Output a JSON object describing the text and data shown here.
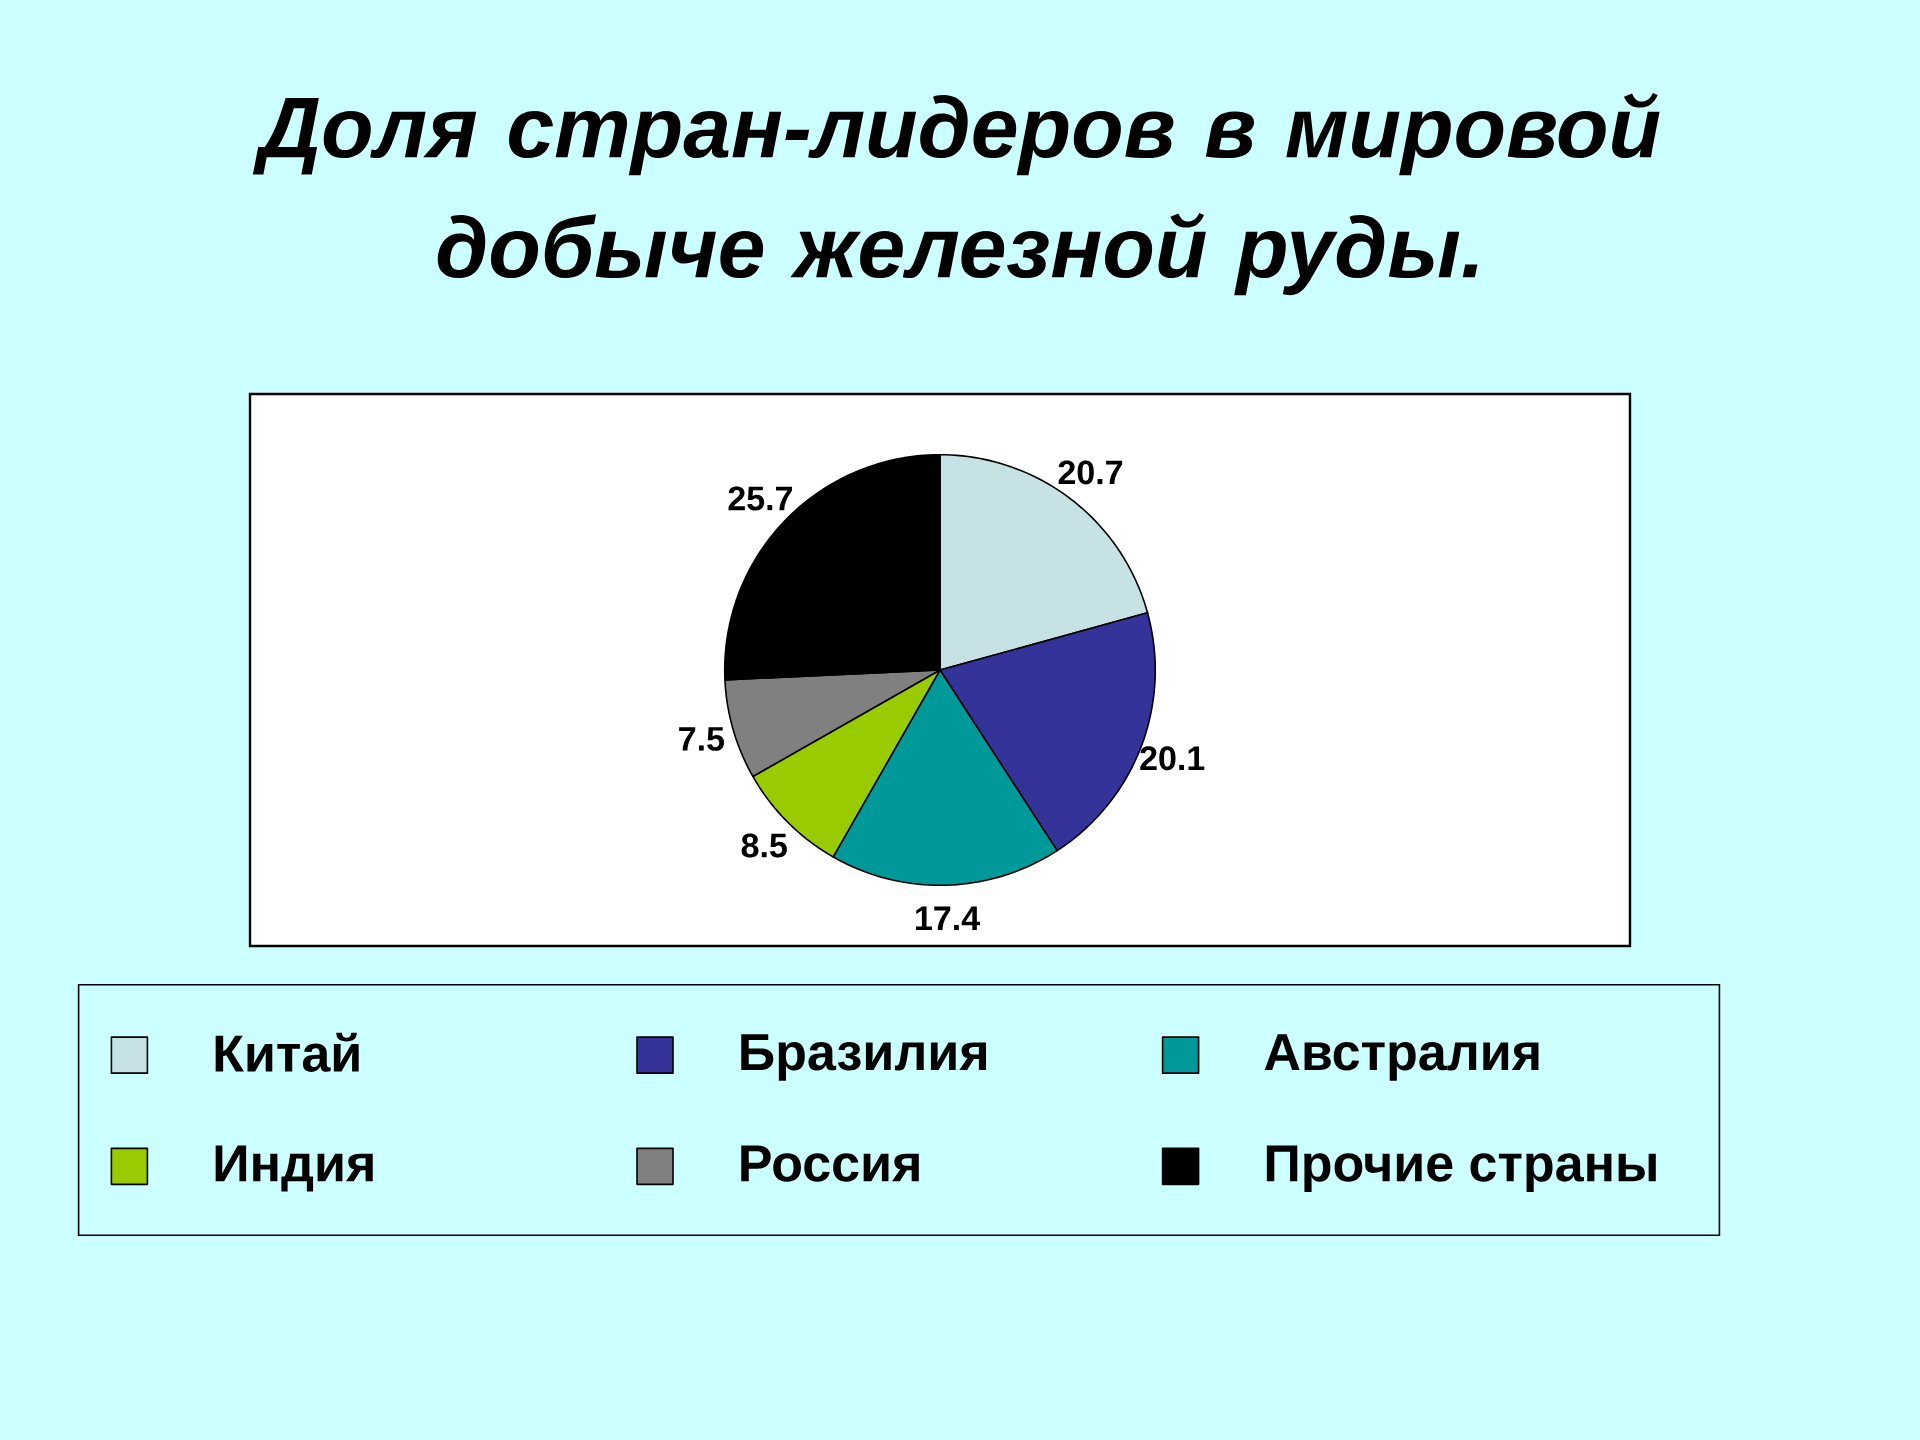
{
  "chart_data": {
    "type": "pie",
    "title": "Доля стран-лидеров в мировой добыче железной руды.",
    "categories": [
      "Китай",
      "Бразилия",
      "Австралия",
      "Индия",
      "Россия",
      "Прочие страны"
    ],
    "values": [
      20.7,
      20.1,
      17.4,
      8.5,
      7.5,
      25.7
    ],
    "colors": [
      "#c6e2e4",
      "#333399",
      "#009999",
      "#99cc00",
      "#808080",
      "#000000"
    ],
    "data_labels": true,
    "legend": "bottom"
  }
}
